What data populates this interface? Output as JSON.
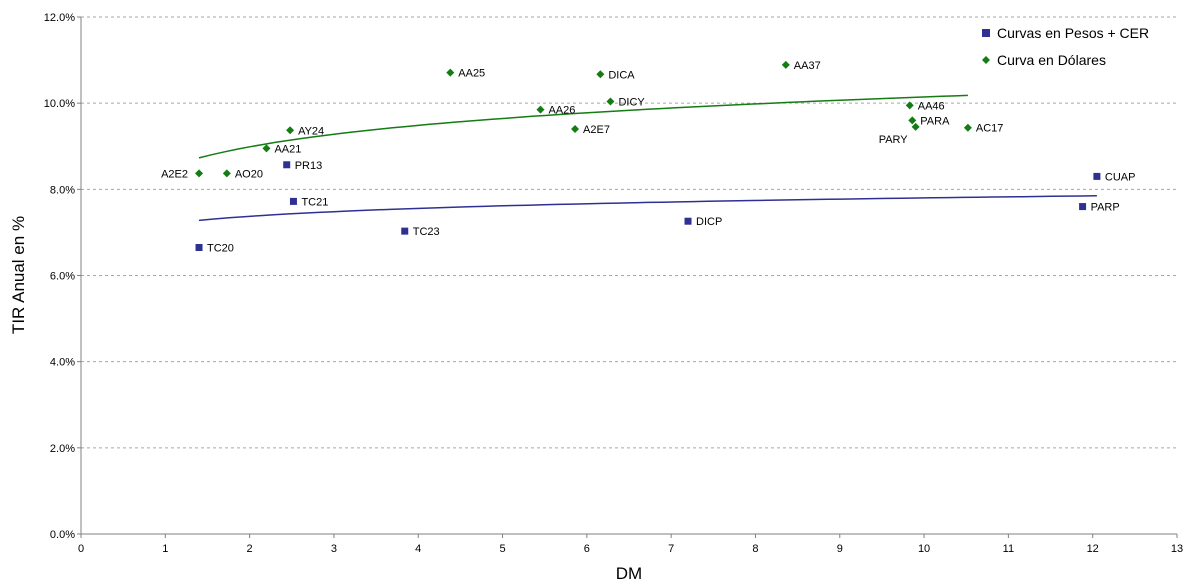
{
  "chart_data": {
    "type": "scatter",
    "title": "",
    "xlabel": "DM",
    "ylabel": "TIR Anual en %",
    "xlim": [
      0,
      13
    ],
    "ylim": [
      0,
      12
    ],
    "x_ticks": [
      "0",
      "1",
      "2",
      "3",
      "4",
      "5",
      "6",
      "7",
      "8",
      "9",
      "10",
      "11",
      "12",
      "13"
    ],
    "y_ticks": [
      "0.0%",
      "2.0%",
      "4.0%",
      "6.0%",
      "8.0%",
      "10.0%",
      "12.0%"
    ],
    "grid": "horizontal dashed",
    "legend_position": "top-right",
    "series": [
      {
        "name": "Curvas en Pesos + CER",
        "color": "#2e3192",
        "marker": "square",
        "points": [
          {
            "label": "TC20",
            "x": 1.4,
            "y": 6.65
          },
          {
            "label": "PR13",
            "x": 2.44,
            "y": 8.57
          },
          {
            "label": "TC21",
            "x": 2.52,
            "y": 7.72
          },
          {
            "label": "TC23",
            "x": 3.84,
            "y": 7.03
          },
          {
            "label": "DICP",
            "x": 7.2,
            "y": 7.26
          },
          {
            "label": "PARP",
            "x": 11.88,
            "y": 7.6
          },
          {
            "label": "CUAP",
            "x": 12.05,
            "y": 8.3
          }
        ],
        "trend": {
          "x_from": 1.4,
          "x_to": 12.05,
          "y_from": 7.28,
          "y_to": 7.85
        }
      },
      {
        "name": "Curva en Dólares",
        "color": "#137c13",
        "marker": "diamond",
        "points": [
          {
            "label": "A2E2",
            "x": 1.4,
            "y": 8.37
          },
          {
            "label": "AO20",
            "x": 1.73,
            "y": 8.37
          },
          {
            "label": "AA21",
            "x": 2.2,
            "y": 8.95
          },
          {
            "label": "AY24",
            "x": 2.48,
            "y": 9.37
          },
          {
            "label": "AA25",
            "x": 4.38,
            "y": 10.71
          },
          {
            "label": "AA26",
            "x": 5.45,
            "y": 9.85
          },
          {
            "label": "A2E7",
            "x": 5.86,
            "y": 9.4
          },
          {
            "label": "DICA",
            "x": 6.16,
            "y": 10.67
          },
          {
            "label": "DICY",
            "x": 6.28,
            "y": 10.04
          },
          {
            "label": "AA37",
            "x": 8.36,
            "y": 10.89
          },
          {
            "label": "AA46",
            "x": 9.83,
            "y": 9.95
          },
          {
            "label": "PARA",
            "x": 9.86,
            "y": 9.6
          },
          {
            "label": "PARY",
            "x": 9.9,
            "y": 9.45
          },
          {
            "label": "AC17",
            "x": 10.52,
            "y": 9.43
          }
        ],
        "trend": {
          "x_from": 1.4,
          "x_to": 10.52,
          "y_from": 8.73,
          "y_to": 10.18
        }
      }
    ]
  }
}
